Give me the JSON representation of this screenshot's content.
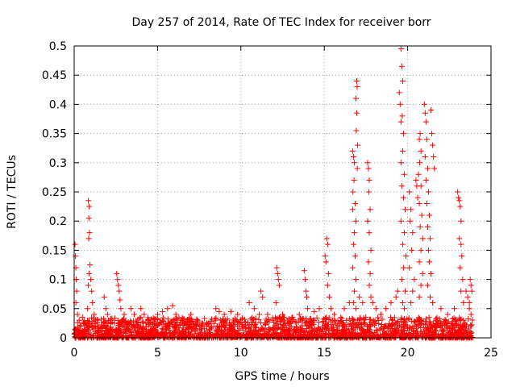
{
  "chart_data": {
    "type": "scatter",
    "title": "Day 257 of 2014, Rate Of TEC Index for receiver borr",
    "xlabel": "GPS time / hours",
    "ylabel": "ROTI / TECUs",
    "xlim": [
      0,
      25
    ],
    "ylim": [
      0,
      0.5
    ],
    "xticks": [
      0,
      5,
      10,
      15,
      20,
      25
    ],
    "xtick_labels": [
      "0",
      "5",
      "10",
      "15",
      "20",
      "25"
    ],
    "yticks": [
      0,
      0.05,
      0.1,
      0.15,
      0.2,
      0.25,
      0.3,
      0.35,
      0.4,
      0.45,
      0.5
    ],
    "ytick_labels": [
      "0",
      "0.05",
      "0.1",
      "0.15",
      "0.2",
      "0.25",
      "0.3",
      "0.35",
      "0.4",
      "0.45",
      "0.5"
    ],
    "grid": true,
    "marker": "+",
    "marker_color": "#ff0000",
    "series": [
      {
        "name": "ROTI",
        "points": [
          [
            0.05,
            0.16
          ],
          [
            0.08,
            0.14
          ],
          [
            0.1,
            0.12
          ],
          [
            0.12,
            0.1
          ],
          [
            0.15,
            0.08
          ],
          [
            0.1,
            0.06
          ],
          [
            0.2,
            0.04
          ],
          [
            0.3,
            0.03
          ],
          [
            0.4,
            0.02
          ],
          [
            0.5,
            0.035
          ],
          [
            0.85,
            0.235
          ],
          [
            0.9,
            0.225
          ],
          [
            0.88,
            0.205
          ],
          [
            0.92,
            0.18
          ],
          [
            0.87,
            0.17
          ],
          [
            0.95,
            0.125
          ],
          [
            0.9,
            0.11
          ],
          [
            1.0,
            0.1
          ],
          [
            0.85,
            0.09
          ],
          [
            1.05,
            0.08
          ],
          [
            1.1,
            0.06
          ],
          [
            0.8,
            0.05
          ],
          [
            1.2,
            0.04
          ],
          [
            1.4,
            0.03
          ],
          [
            1.8,
            0.07
          ],
          [
            1.9,
            0.05
          ],
          [
            2.0,
            0.04
          ],
          [
            2.2,
            0.03
          ],
          [
            2.55,
            0.11
          ],
          [
            2.6,
            0.1
          ],
          [
            2.65,
            0.09
          ],
          [
            2.7,
            0.08
          ],
          [
            2.75,
            0.065
          ],
          [
            2.8,
            0.05
          ],
          [
            3.0,
            0.04
          ],
          [
            3.4,
            0.05
          ],
          [
            3.6,
            0.04
          ],
          [
            4.0,
            0.05
          ],
          [
            4.2,
            0.04
          ],
          [
            4.4,
            0.03
          ],
          [
            5.0,
            0.04
          ],
          [
            5.3,
            0.045
          ],
          [
            5.6,
            0.05
          ],
          [
            5.9,
            0.055
          ],
          [
            6.1,
            0.04
          ],
          [
            6.4,
            0.03
          ],
          [
            7.0,
            0.04
          ],
          [
            7.4,
            0.03
          ],
          [
            8.5,
            0.05
          ],
          [
            8.7,
            0.045
          ],
          [
            9.0,
            0.04
          ],
          [
            9.4,
            0.045
          ],
          [
            9.8,
            0.04
          ],
          [
            10.5,
            0.06
          ],
          [
            10.8,
            0.05
          ],
          [
            11.1,
            0.04
          ],
          [
            11.2,
            0.08
          ],
          [
            11.3,
            0.07
          ],
          [
            11.6,
            0.04
          ],
          [
            11.9,
            0.03
          ],
          [
            12.15,
            0.12
          ],
          [
            12.2,
            0.11
          ],
          [
            12.25,
            0.1
          ],
          [
            12.3,
            0.09
          ],
          [
            12.1,
            0.06
          ],
          [
            12.5,
            0.04
          ],
          [
            12.8,
            0.03
          ],
          [
            13.1,
            0.035
          ],
          [
            13.5,
            0.04
          ],
          [
            13.8,
            0.115
          ],
          [
            13.85,
            0.1
          ],
          [
            13.9,
            0.08
          ],
          [
            13.95,
            0.07
          ],
          [
            14.0,
            0.05
          ],
          [
            14.4,
            0.045
          ],
          [
            14.7,
            0.05
          ],
          [
            15.05,
            0.14
          ],
          [
            15.1,
            0.13
          ],
          [
            15.15,
            0.17
          ],
          [
            15.2,
            0.16
          ],
          [
            15.25,
            0.11
          ],
          [
            15.2,
            0.09
          ],
          [
            15.3,
            0.07
          ],
          [
            15.4,
            0.05
          ],
          [
            15.6,
            0.04
          ],
          [
            16.2,
            0.05
          ],
          [
            16.5,
            0.06
          ],
          [
            16.7,
            0.32
          ],
          [
            16.75,
            0.31
          ],
          [
            16.8,
            0.3
          ],
          [
            16.78,
            0.27
          ],
          [
            16.72,
            0.25
          ],
          [
            16.85,
            0.23
          ],
          [
            16.7,
            0.22
          ],
          [
            16.9,
            0.2
          ],
          [
            16.8,
            0.18
          ],
          [
            16.75,
            0.16
          ],
          [
            16.85,
            0.14
          ],
          [
            16.7,
            0.12
          ],
          [
            16.9,
            0.1
          ],
          [
            16.8,
            0.08
          ],
          [
            16.75,
            0.06
          ],
          [
            16.9,
            0.05
          ],
          [
            16.95,
            0.44
          ],
          [
            16.97,
            0.43
          ],
          [
            16.9,
            0.41
          ],
          [
            16.95,
            0.385
          ],
          [
            16.92,
            0.355
          ],
          [
            17.0,
            0.33
          ],
          [
            16.98,
            0.29
          ],
          [
            17.1,
            0.07
          ],
          [
            17.3,
            0.06
          ],
          [
            17.6,
            0.3
          ],
          [
            17.65,
            0.29
          ],
          [
            17.7,
            0.27
          ],
          [
            17.68,
            0.25
          ],
          [
            17.75,
            0.22
          ],
          [
            17.6,
            0.2
          ],
          [
            17.7,
            0.18
          ],
          [
            17.8,
            0.15
          ],
          [
            17.65,
            0.13
          ],
          [
            17.75,
            0.11
          ],
          [
            17.7,
            0.09
          ],
          [
            17.8,
            0.07
          ],
          [
            17.9,
            0.06
          ],
          [
            18.1,
            0.05
          ],
          [
            18.4,
            0.04
          ],
          [
            18.7,
            0.05
          ],
          [
            19.0,
            0.06
          ],
          [
            19.3,
            0.07
          ],
          [
            19.4,
            0.08
          ],
          [
            19.6,
            0.495
          ],
          [
            19.65,
            0.465
          ],
          [
            19.7,
            0.44
          ],
          [
            19.68,
            0.38
          ],
          [
            19.6,
            0.37
          ],
          [
            19.75,
            0.35
          ],
          [
            19.7,
            0.32
          ],
          [
            19.6,
            0.3
          ],
          [
            19.8,
            0.28
          ],
          [
            19.65,
            0.26
          ],
          [
            19.75,
            0.24
          ],
          [
            19.85,
            0.22
          ],
          [
            19.6,
            0.2
          ],
          [
            19.8,
            0.18
          ],
          [
            19.7,
            0.16
          ],
          [
            19.9,
            0.14
          ],
          [
            19.75,
            0.12
          ],
          [
            19.65,
            0.1
          ],
          [
            19.85,
            0.08
          ],
          [
            19.7,
            0.06
          ],
          [
            19.8,
            0.05
          ],
          [
            19.5,
            0.42
          ],
          [
            19.55,
            0.4
          ],
          [
            20.1,
            0.25
          ],
          [
            20.2,
            0.22
          ],
          [
            20.15,
            0.2
          ],
          [
            20.3,
            0.18
          ],
          [
            20.25,
            0.15
          ],
          [
            20.1,
            0.12
          ],
          [
            20.4,
            0.1
          ],
          [
            20.3,
            0.08
          ],
          [
            20.2,
            0.06
          ],
          [
            20.5,
            0.27
          ],
          [
            20.55,
            0.26
          ],
          [
            20.6,
            0.24
          ],
          [
            20.7,
            0.34
          ],
          [
            20.75,
            0.35
          ],
          [
            20.8,
            0.32
          ],
          [
            20.72,
            0.3
          ],
          [
            20.65,
            0.28
          ],
          [
            20.8,
            0.26
          ],
          [
            20.7,
            0.23
          ],
          [
            20.85,
            0.21
          ],
          [
            20.75,
            0.19
          ],
          [
            20.9,
            0.17
          ],
          [
            20.8,
            0.15
          ],
          [
            20.7,
            0.13
          ],
          [
            20.9,
            0.11
          ],
          [
            20.8,
            0.09
          ],
          [
            20.7,
            0.07
          ],
          [
            21.0,
            0.4
          ],
          [
            21.05,
            0.385
          ],
          [
            21.1,
            0.37
          ],
          [
            21.15,
            0.34
          ],
          [
            21.05,
            0.31
          ],
          [
            21.2,
            0.29
          ],
          [
            21.1,
            0.27
          ],
          [
            21.25,
            0.25
          ],
          [
            21.15,
            0.23
          ],
          [
            21.3,
            0.21
          ],
          [
            21.2,
            0.19
          ],
          [
            21.35,
            0.17
          ],
          [
            21.25,
            0.15
          ],
          [
            21.3,
            0.13
          ],
          [
            21.4,
            0.11
          ],
          [
            21.2,
            0.09
          ],
          [
            21.35,
            0.07
          ],
          [
            21.5,
            0.06
          ],
          [
            21.4,
            0.39
          ],
          [
            21.45,
            0.35
          ],
          [
            21.5,
            0.33
          ],
          [
            21.55,
            0.31
          ],
          [
            21.6,
            0.29
          ],
          [
            22.0,
            0.05
          ],
          [
            22.4,
            0.04
          ],
          [
            22.8,
            0.05
          ],
          [
            23.0,
            0.25
          ],
          [
            23.05,
            0.24
          ],
          [
            23.1,
            0.235
          ],
          [
            23.15,
            0.225
          ],
          [
            23.2,
            0.2
          ],
          [
            23.1,
            0.17
          ],
          [
            23.2,
            0.16
          ],
          [
            23.25,
            0.14
          ],
          [
            23.15,
            0.12
          ],
          [
            23.3,
            0.1
          ],
          [
            23.2,
            0.08
          ],
          [
            23.35,
            0.06
          ],
          [
            23.5,
            0.08
          ],
          [
            23.6,
            0.07
          ],
          [
            23.7,
            0.06
          ],
          [
            23.75,
            0.1
          ],
          [
            23.8,
            0.09
          ],
          [
            23.85,
            0.08
          ],
          [
            23.7,
            0.05
          ],
          [
            23.8,
            0.04
          ]
        ]
      }
    ]
  }
}
